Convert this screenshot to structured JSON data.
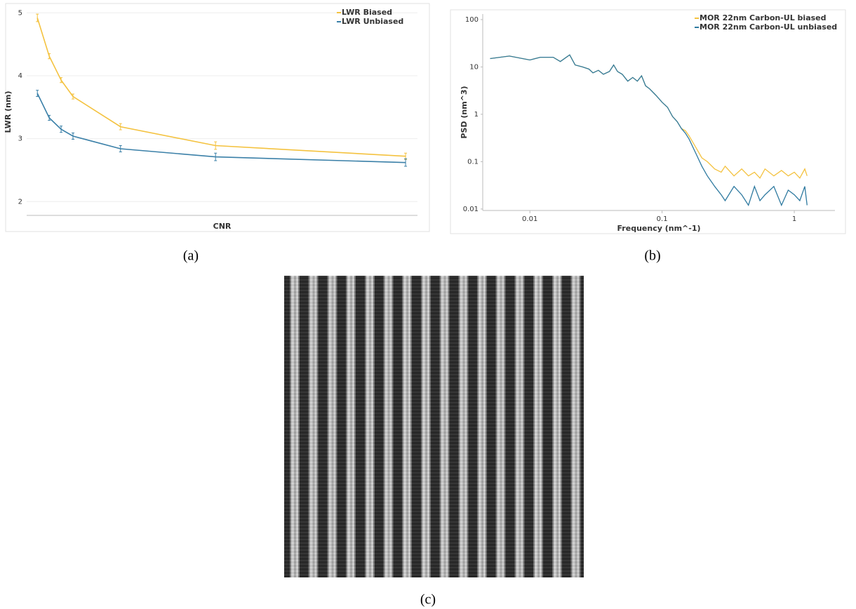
{
  "chart_data": [
    {
      "type": "line",
      "xlabel": "CNR",
      "ylabel": "LWR (nm)",
      "x": [
        1,
        2,
        3,
        4,
        8,
        16,
        32
      ],
      "xlim": [
        0.1,
        33
      ],
      "ylim": [
        1.78,
        5.07
      ],
      "yticks": [
        2,
        3,
        4,
        5
      ],
      "grid": true,
      "legend": "upper right",
      "series": [
        {
          "name": "LWR Biased",
          "color": "#f4c23f",
          "values": [
            4.92,
            4.31,
            3.93,
            3.67,
            3.19,
            2.89,
            2.72
          ],
          "errors": [
            0.06,
            0.04,
            0.04,
            0.04,
            0.05,
            0.06,
            0.05
          ]
        },
        {
          "name": "LWR Unbiased",
          "color": "#3b80a8",
          "values": [
            3.72,
            3.33,
            3.15,
            3.04,
            2.84,
            2.71,
            2.62
          ],
          "errors": [
            0.05,
            0.04,
            0.05,
            0.05,
            0.05,
            0.06,
            0.06
          ]
        }
      ]
    },
    {
      "type": "line",
      "xlabel": "Frequency (nm^-1)",
      "ylabel": "PSD (nm^3)",
      "log_x": true,
      "log_y": true,
      "x": [
        0.005,
        0.007,
        0.01,
        0.012,
        0.015,
        0.017,
        0.02,
        0.022,
        0.025,
        0.028,
        0.03,
        0.033,
        0.036,
        0.04,
        0.043,
        0.046,
        0.05,
        0.055,
        0.06,
        0.065,
        0.07,
        0.075,
        0.08,
        0.09,
        0.1,
        0.11,
        0.12,
        0.13,
        0.14,
        0.15,
        0.16,
        0.18,
        0.2,
        0.22,
        0.25,
        0.28,
        0.3,
        0.35,
        0.4,
        0.45,
        0.5,
        0.55,
        0.6,
        0.7,
        0.8,
        0.9,
        1.0,
        1.1,
        1.2,
        1.25
      ],
      "xlim": [
        0.0044,
        2.03
      ],
      "xticks": [
        0.01,
        0.1,
        1
      ],
      "ylim": [
        0.0093,
        131
      ],
      "yticks": [
        0.01,
        0.1,
        1,
        10,
        100
      ],
      "grid": false,
      "legend": "upper right",
      "series": [
        {
          "name": "MOR 22nm Carbon-UL biased",
          "color": "#f4c23f",
          "values": [
            15,
            17,
            14,
            16,
            16,
            13,
            18,
            11,
            10,
            9,
            7.5,
            8.5,
            7,
            8,
            11,
            8,
            7,
            5,
            6,
            5,
            6.5,
            4,
            3.5,
            2.5,
            1.8,
            1.4,
            0.9,
            0.7,
            0.5,
            0.45,
            0.35,
            0.2,
            0.12,
            0.1,
            0.07,
            0.06,
            0.08,
            0.05,
            0.07,
            0.05,
            0.06,
            0.045,
            0.07,
            0.05,
            0.065,
            0.05,
            0.06,
            0.045,
            0.07,
            0.05
          ]
        },
        {
          "name": "MOR 22nm Carbon-UL unbiased",
          "color": "#2f7aa0",
          "values": [
            15,
            17,
            14,
            16,
            16,
            13,
            18,
            11,
            10,
            9,
            7.5,
            8.5,
            7,
            8,
            11,
            8,
            7,
            5,
            6,
            5,
            6.5,
            4,
            3.5,
            2.5,
            1.8,
            1.4,
            0.9,
            0.7,
            0.5,
            0.4,
            0.3,
            0.15,
            0.08,
            0.05,
            0.03,
            0.02,
            0.015,
            0.03,
            0.02,
            0.012,
            0.03,
            0.015,
            0.02,
            0.03,
            0.012,
            0.025,
            0.02,
            0.015,
            0.03,
            0.012
          ]
        }
      ]
    }
  ],
  "captions": [
    "(a)",
    "(b)",
    "(c)"
  ]
}
